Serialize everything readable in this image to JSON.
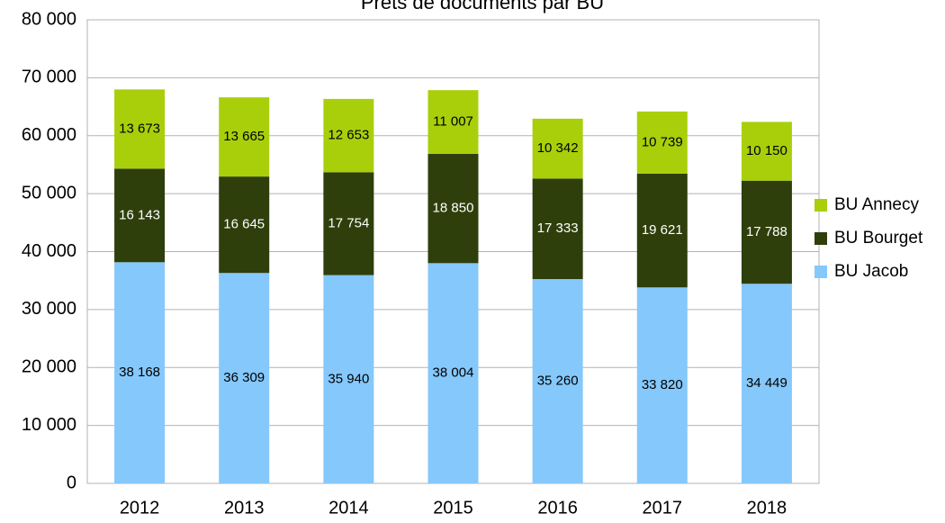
{
  "chart_data": {
    "type": "stacked_bar",
    "title": "Prêts de documents par BU",
    "categories": [
      "2012",
      "2013",
      "2014",
      "2015",
      "2016",
      "2017",
      "2018"
    ],
    "series": [
      {
        "name": "BU Jacob",
        "color": "#85c8fb",
        "values": [
          38168,
          36309,
          35940,
          38004,
          35260,
          33820,
          34449
        ],
        "value_labels": [
          "38 168",
          "36 309",
          "35 940",
          "38 004",
          "35 260",
          "33 820",
          "34 449"
        ]
      },
      {
        "name": "BU Bourget",
        "color": "#2e3f0b",
        "values": [
          16143,
          16645,
          17754,
          18850,
          17333,
          19621,
          17788
        ],
        "value_labels": [
          "16 143",
          "16 645",
          "17 754",
          "18 850",
          "17 333",
          "19 621",
          "17 788"
        ]
      },
      {
        "name": "BU Annecy",
        "color": "#a9cf0b",
        "values": [
          13673,
          13665,
          12653,
          11007,
          10342,
          10739,
          10150
        ],
        "value_labels": [
          "13 673",
          "13 665",
          "12 653",
          "11 007",
          "10 342",
          "10 739",
          "10 150"
        ]
      }
    ],
    "ylim": [
      0,
      80000
    ],
    "yticks": [
      0,
      {
        "value": 10000,
        "label": "10 000"
      },
      {
        "value": 20000,
        "label": "20 000"
      },
      {
        "value": 30000,
        "label": "30 000"
      },
      {
        "value": 40000,
        "label": "40 000"
      },
      {
        "value": 50000,
        "label": "50 000"
      },
      {
        "value": 60000,
        "label": "60 000"
      },
      {
        "value": 70000,
        "label": "70 000"
      },
      {
        "value": 80000,
        "label": "80 000"
      }
    ],
    "grid": true,
    "legend": "right"
  }
}
